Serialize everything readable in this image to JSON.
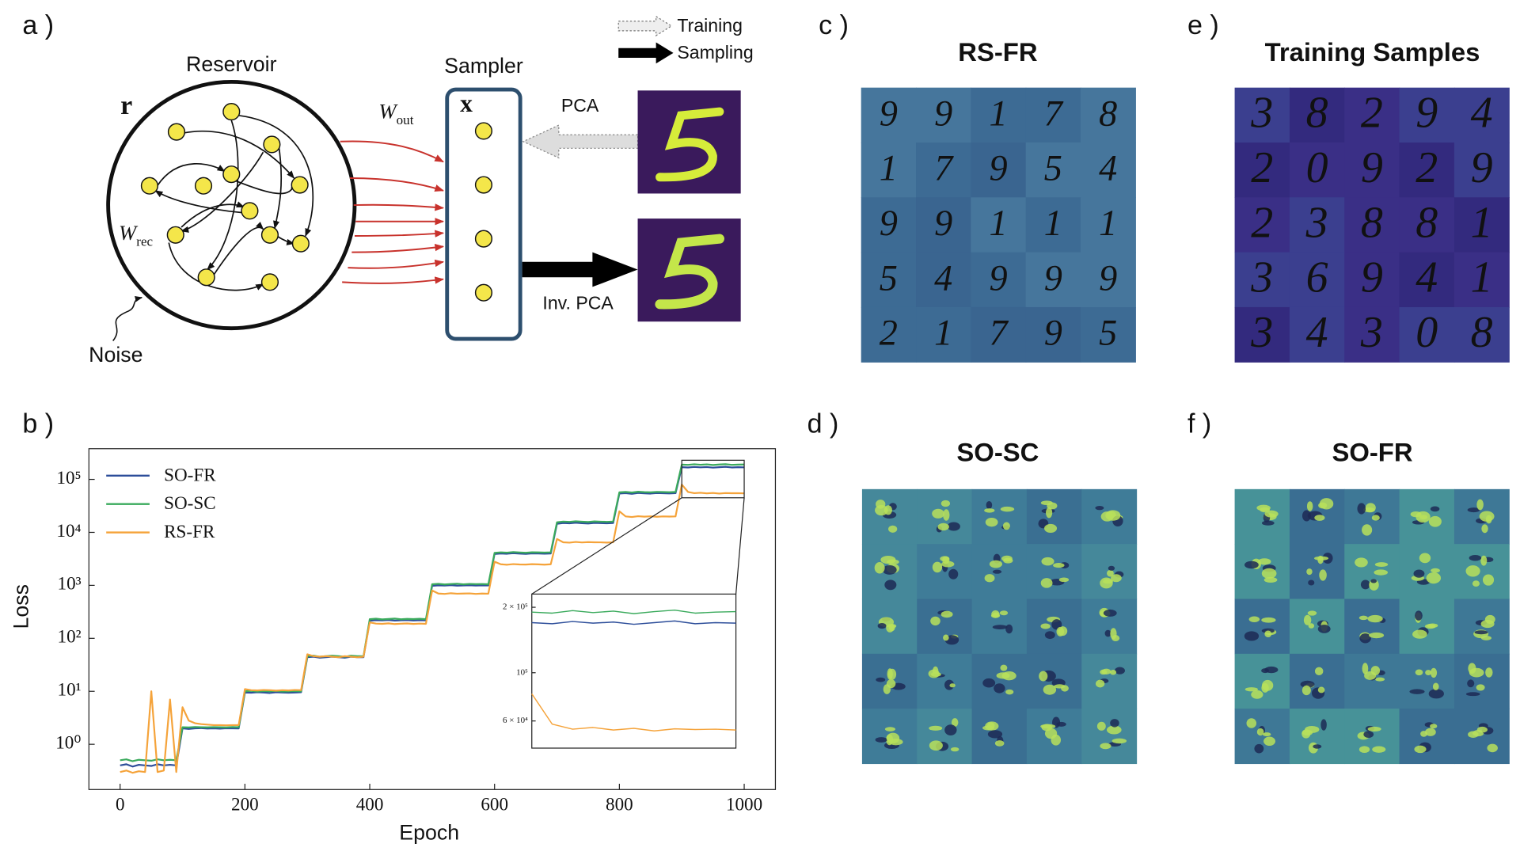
{
  "panels": {
    "a": "a )",
    "b": "b )"
  },
  "diagram": {
    "reservoir": "Reservoir",
    "r": "r",
    "w_rec": "W",
    "w_rec_sub": "rec",
    "noise": "Noise",
    "sampler": "Sampler",
    "x": "x",
    "w_out": "W",
    "w_out_sub": "out",
    "pca": "PCA",
    "inv_pca": "Inv. PCA",
    "legend": [
      "Training",
      "Sampling"
    ]
  },
  "grids": [
    {
      "label": "c )",
      "title": "RS-FR",
      "digits": [
        "9",
        "9",
        "1",
        "7",
        "8",
        "1",
        "7",
        "9",
        "5",
        "4",
        "9",
        "9",
        "1",
        "1",
        "1",
        "5",
        "4",
        "9",
        "9",
        "9",
        "2",
        "1",
        "7",
        "9",
        "5"
      ]
    },
    {
      "label": "e )",
      "title": "Training Samples",
      "digits": [
        "3",
        "8",
        "2",
        "9",
        "4",
        "2",
        "0",
        "9",
        "2",
        "9",
        "2",
        "3",
        "8",
        "8",
        "1",
        "3",
        "6",
        "9",
        "4",
        "1",
        "3",
        "4",
        "3",
        "0",
        "8"
      ]
    },
    {
      "label": "d )",
      "title": "SO-SC"
    },
    {
      "label": "f )",
      "title": "SO-FR"
    }
  ],
  "chart_data": {
    "type": "line",
    "x_label": "Epoch",
    "y_label": "Loss",
    "log_y": true,
    "legend": "upper left",
    "xlim": [
      -50,
      1050
    ],
    "ylim": [
      0.14,
      380000
    ],
    "xticks": [
      0,
      200,
      400,
      600,
      800,
      1000
    ],
    "yticks": [
      {
        "value": 1,
        "label": "10⁰"
      },
      {
        "value": 10,
        "label": "10¹"
      },
      {
        "value": 100,
        "label": "10²"
      },
      {
        "value": 1000,
        "label": "10³"
      },
      {
        "value": 10000,
        "label": "10⁴"
      },
      {
        "value": 100000,
        "label": "10⁵"
      }
    ],
    "x": [
      0,
      10,
      20,
      30,
      40,
      50,
      60,
      70,
      80,
      90,
      100,
      110,
      120,
      130,
      140,
      150,
      160,
      170,
      180,
      190,
      200,
      210,
      220,
      230,
      240,
      250,
      260,
      270,
      280,
      290,
      300,
      310,
      320,
      330,
      340,
      350,
      360,
      370,
      380,
      390,
      400,
      410,
      420,
      430,
      440,
      450,
      460,
      470,
      480,
      490,
      500,
      510,
      520,
      530,
      540,
      550,
      560,
      570,
      580,
      590,
      600,
      610,
      620,
      630,
      640,
      650,
      660,
      670,
      680,
      690,
      700,
      710,
      720,
      730,
      740,
      750,
      760,
      770,
      780,
      790,
      800,
      810,
      820,
      830,
      840,
      850,
      860,
      870,
      880,
      890,
      900,
      910,
      920,
      930,
      940,
      950,
      960,
      970,
      980,
      990,
      1000
    ],
    "series": [
      {
        "name": "SO-FR",
        "color": "#2d4e9a",
        "values": [
          0.4,
          0.42,
          0.38,
          0.41,
          0.4,
          0.39,
          0.42,
          0.4,
          0.41,
          0.4,
          2.0,
          1.95,
          2.0,
          2.02,
          1.98,
          2.0,
          1.97,
          2.01,
          2.0,
          1.99,
          9.5,
          9.4,
          9.6,
          9.5,
          9.3,
          9.6,
          9.5,
          9.4,
          9.5,
          9.6,
          44,
          45,
          43,
          44,
          45,
          44,
          43,
          45,
          44,
          44,
          215,
          220,
          218,
          222,
          216,
          219,
          221,
          217,
          220,
          218,
          980,
          1000,
          990,
          1010,
          985,
          995,
          1005,
          990,
          1000,
          995,
          3900,
          4000,
          3950,
          4050,
          3980,
          3920,
          4010,
          3990,
          3960,
          4000,
          14500,
          15000,
          14800,
          15200,
          14900,
          14700,
          15100,
          14950,
          14800,
          15000,
          54000,
          55000,
          53500,
          55500,
          54500,
          54000,
          55200,
          54800,
          54300,
          55000,
          170000,
          168000,
          172000,
          169000,
          171000,
          167000,
          170000,
          173000,
          168000,
          170000,
          169000
        ]
      },
      {
        "name": "SO-SC",
        "color": "#3aaa5c",
        "values": [
          0.5,
          0.52,
          0.48,
          0.51,
          0.5,
          0.49,
          0.52,
          0.5,
          0.51,
          0.5,
          2.1,
          2.08,
          2.12,
          2.1,
          2.09,
          2.11,
          2.1,
          2.08,
          2.12,
          2.1,
          10,
          10.2,
          9.9,
          10.1,
          10,
          10.2,
          9.9,
          10,
          10.1,
          10,
          46,
          47,
          45,
          46,
          47,
          46,
          45,
          47,
          46,
          46,
          230,
          235,
          228,
          232,
          236,
          229,
          233,
          231,
          234,
          230,
          1050,
          1070,
          1040,
          1060,
          1075,
          1045,
          1065,
          1055,
          1060,
          1050,
          4100,
          4200,
          4150,
          4250,
          4180,
          4120,
          4210,
          4190,
          4160,
          4200,
          15500,
          16000,
          15800,
          16200,
          15900,
          15700,
          16100,
          15950,
          15800,
          16000,
          57000,
          58000,
          56500,
          58500,
          57500,
          57000,
          58200,
          57800,
          57300,
          58000,
          190000,
          188000,
          193000,
          189000,
          192000,
          187000,
          191000,
          194000,
          188000,
          190000,
          191000
        ]
      },
      {
        "name": "RS-FR",
        "color": "#f5a33a",
        "values": [
          0.3,
          0.32,
          0.29,
          0.31,
          0.3,
          10,
          0.3,
          0.32,
          7,
          0.3,
          5,
          2.8,
          2.5,
          2.4,
          2.35,
          2.3,
          2.3,
          2.28,
          2.3,
          2.3,
          11,
          10.5,
          10.4,
          10.6,
          10.5,
          10.3,
          10.5,
          10.4,
          10.6,
          10.5,
          50,
          46,
          45,
          46,
          45,
          44,
          46,
          45,
          44,
          45,
          200,
          190,
          188,
          192,
          186,
          189,
          191,
          187,
          190,
          188,
          800,
          700,
          690,
          710,
          695,
          700,
          705,
          690,
          700,
          695,
          2800,
          2500,
          2450,
          2520,
          2480,
          2470,
          2510,
          2490,
          2460,
          2500,
          7500,
          6500,
          6400,
          6600,
          6450,
          6550,
          6500,
          6480,
          6420,
          6500,
          25000,
          20000,
          19500,
          20200,
          19800,
          20100,
          19700,
          20000,
          19900,
          20000,
          80000,
          58000,
          55000,
          56000,
          54500,
          55500,
          54000,
          55200,
          54800,
          55000,
          54500
        ]
      }
    ],
    "inset": {
      "xlim": [
        900,
        1000
      ],
      "ylim": [
        45000,
        230000
      ],
      "yticks": [
        {
          "value": 200000,
          "label": "2 × 10⁵"
        },
        {
          "value": 100000,
          "label": "10⁵"
        },
        {
          "value": 60000,
          "label": "6 × 10⁴"
        }
      ]
    }
  }
}
